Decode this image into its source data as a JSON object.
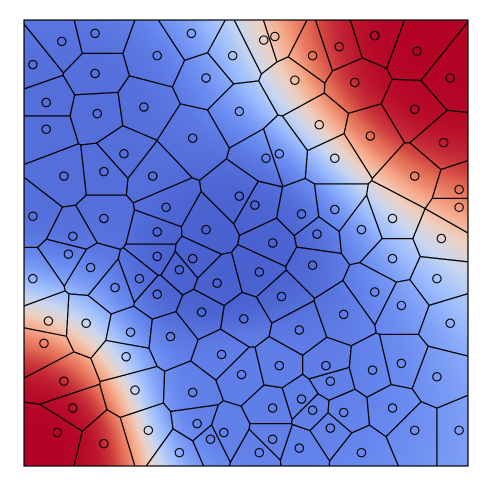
{
  "chart_data": {
    "type": "voronoi",
    "title": "",
    "xlabel": "",
    "ylabel": "",
    "xlim": [
      0,
      1
    ],
    "ylim": [
      0,
      1
    ],
    "grid": false,
    "axis_ticks": false,
    "colormap": "coolwarm",
    "colormap_stops": [
      "#3b4cc0",
      "#6788ee",
      "#9abbff",
      "#c9d7f0",
      "#edd1c2",
      "#f7a889",
      "#e26952",
      "#b40426"
    ],
    "field_description_points": [
      {
        "x": 0.1,
        "y": 0.7,
        "v": 0.08
      },
      {
        "x": 0.45,
        "y": 0.45,
        "v": 0.05
      },
      {
        "x": 0.5,
        "y": 0.18,
        "v": 0.12
      },
      {
        "x": 0.95,
        "y": 0.95,
        "v": 1.0
      },
      {
        "x": 0.02,
        "y": 0.03,
        "v": 1.0
      }
    ],
    "markers": {
      "shape": "circle",
      "fill": "none",
      "stroke": "#000000"
    },
    "points": [
      {
        "x": 0.085,
        "y": 0.952
      },
      {
        "x": 0.16,
        "y": 0.97
      },
      {
        "x": 0.377,
        "y": 0.97
      },
      {
        "x": 0.54,
        "y": 0.955
      },
      {
        "x": 0.565,
        "y": 0.963
      },
      {
        "x": 0.71,
        "y": 0.94
      },
      {
        "x": 0.79,
        "y": 0.965
      },
      {
        "x": 0.885,
        "y": 0.93
      },
      {
        "x": 0.96,
        "y": 0.87
      },
      {
        "x": 0.41,
        "y": 0.87
      },
      {
        "x": 0.61,
        "y": 0.865
      },
      {
        "x": 0.745,
        "y": 0.86
      },
      {
        "x": 0.05,
        "y": 0.815
      },
      {
        "x": 0.165,
        "y": 0.79
      },
      {
        "x": 0.27,
        "y": 0.805
      },
      {
        "x": 0.485,
        "y": 0.795
      },
      {
        "x": 0.665,
        "y": 0.765
      },
      {
        "x": 0.78,
        "y": 0.74
      },
      {
        "x": 0.945,
        "y": 0.725
      },
      {
        "x": 0.05,
        "y": 0.755
      },
      {
        "x": 0.225,
        "y": 0.7
      },
      {
        "x": 0.38,
        "y": 0.735
      },
      {
        "x": 0.545,
        "y": 0.69
      },
      {
        "x": 0.575,
        "y": 0.7
      },
      {
        "x": 0.88,
        "y": 0.65
      },
      {
        "x": 0.09,
        "y": 0.65
      },
      {
        "x": 0.18,
        "y": 0.66
      },
      {
        "x": 0.29,
        "y": 0.65
      },
      {
        "x": 0.485,
        "y": 0.605
      },
      {
        "x": 0.7,
        "y": 0.575
      },
      {
        "x": 0.32,
        "y": 0.58
      },
      {
        "x": 0.52,
        "y": 0.585
      },
      {
        "x": 0.83,
        "y": 0.555
      },
      {
        "x": 0.625,
        "y": 0.565
      },
      {
        "x": 0.66,
        "y": 0.52
      },
      {
        "x": 0.94,
        "y": 0.51
      },
      {
        "x": 0.11,
        "y": 0.515
      },
      {
        "x": 0.18,
        "y": 0.555
      },
      {
        "x": 0.3,
        "y": 0.525
      },
      {
        "x": 0.41,
        "y": 0.53
      },
      {
        "x": 0.56,
        "y": 0.5
      },
      {
        "x": 0.83,
        "y": 0.465
      },
      {
        "x": 0.1,
        "y": 0.475
      },
      {
        "x": 0.26,
        "y": 0.42
      },
      {
        "x": 0.38,
        "y": 0.465
      },
      {
        "x": 0.435,
        "y": 0.41
      },
      {
        "x": 0.53,
        "y": 0.435
      },
      {
        "x": 0.93,
        "y": 0.42
      },
      {
        "x": 0.205,
        "y": 0.4
      },
      {
        "x": 0.3,
        "y": 0.385
      },
      {
        "x": 0.4,
        "y": 0.345
      },
      {
        "x": 0.58,
        "y": 0.38
      },
      {
        "x": 0.79,
        "y": 0.39
      },
      {
        "x": 0.85,
        "y": 0.36
      },
      {
        "x": 0.055,
        "y": 0.325
      },
      {
        "x": 0.14,
        "y": 0.32
      },
      {
        "x": 0.24,
        "y": 0.3
      },
      {
        "x": 0.495,
        "y": 0.33
      },
      {
        "x": 0.62,
        "y": 0.305
      },
      {
        "x": 0.72,
        "y": 0.34
      },
      {
        "x": 0.23,
        "y": 0.245
      },
      {
        "x": 0.445,
        "y": 0.25
      },
      {
        "x": 0.575,
        "y": 0.225
      },
      {
        "x": 0.68,
        "y": 0.225
      },
      {
        "x": 0.85,
        "y": 0.23
      },
      {
        "x": 0.09,
        "y": 0.19
      },
      {
        "x": 0.38,
        "y": 0.165
      },
      {
        "x": 0.49,
        "y": 0.205
      },
      {
        "x": 0.69,
        "y": 0.19
      },
      {
        "x": 0.785,
        "y": 0.215
      },
      {
        "x": 0.93,
        "y": 0.2
      },
      {
        "x": 0.11,
        "y": 0.13
      },
      {
        "x": 0.39,
        "y": 0.095
      },
      {
        "x": 0.625,
        "y": 0.15
      },
      {
        "x": 0.65,
        "y": 0.125
      },
      {
        "x": 0.83,
        "y": 0.13
      },
      {
        "x": 0.72,
        "y": 0.12
      },
      {
        "x": 0.075,
        "y": 0.075
      },
      {
        "x": 0.18,
        "y": 0.05
      },
      {
        "x": 0.42,
        "y": 0.06
      },
      {
        "x": 0.45,
        "y": 0.075
      },
      {
        "x": 0.62,
        "y": 0.04
      },
      {
        "x": 0.69,
        "y": 0.085
      },
      {
        "x": 0.88,
        "y": 0.08
      },
      {
        "x": 0.045,
        "y": 0.275
      },
      {
        "x": 0.33,
        "y": 0.29
      },
      {
        "x": 0.65,
        "y": 0.45
      },
      {
        "x": 0.15,
        "y": 0.445
      },
      {
        "x": 0.76,
        "y": 0.53
      },
      {
        "x": 0.35,
        "y": 0.44
      },
      {
        "x": 0.25,
        "y": 0.17
      },
      {
        "x": 0.56,
        "y": 0.13
      },
      {
        "x": 0.96,
        "y": 0.32
      },
      {
        "x": 0.3,
        "y": 0.92
      },
      {
        "x": 0.47,
        "y": 0.92
      },
      {
        "x": 0.65,
        "y": 0.92
      },
      {
        "x": 0.02,
        "y": 0.9
      },
      {
        "x": 0.98,
        "y": 0.62
      },
      {
        "x": 0.02,
        "y": 0.56
      },
      {
        "x": 0.02,
        "y": 0.42
      },
      {
        "x": 0.16,
        "y": 0.88
      },
      {
        "x": 0.3,
        "y": 0.47
      },
      {
        "x": 0.7,
        "y": 0.69
      },
      {
        "x": 0.88,
        "y": 0.8
      },
      {
        "x": 0.98,
        "y": 0.08
      },
      {
        "x": 0.28,
        "y": 0.08
      },
      {
        "x": 0.53,
        "y": 0.03
      },
      {
        "x": 0.76,
        "y": 0.03
      },
      {
        "x": 0.56,
        "y": 0.06
      },
      {
        "x": 0.35,
        "y": 0.03
      },
      {
        "x": 0.98,
        "y": 0.58
      }
    ]
  }
}
